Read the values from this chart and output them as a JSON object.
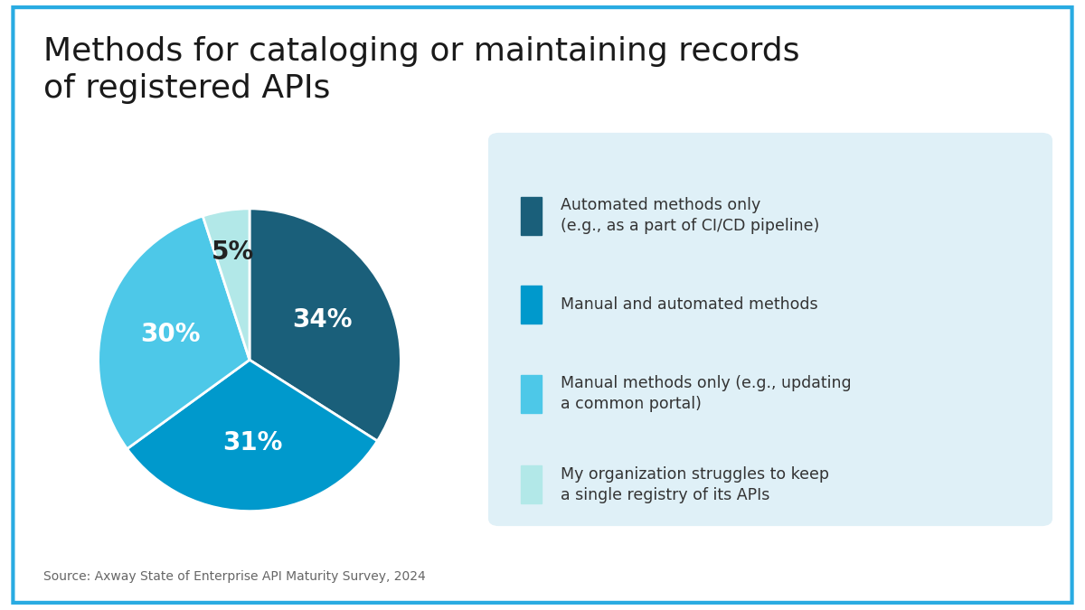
{
  "title": "Methods for cataloging or maintaining records\nof registered APIs",
  "title_fontsize": 26,
  "title_color": "#1a1a1a",
  "background_color": "#ffffff",
  "border_color": "#29abe2",
  "source_text": "Source: Axway State of Enterprise API Maturity Survey, 2024",
  "slices": [
    34,
    31,
    30,
    5
  ],
  "slice_colors": [
    "#1a5f7a",
    "#0099cc",
    "#4dc8e8",
    "#b2e8e8"
  ],
  "slice_labels": [
    "34%",
    "31%",
    "30%",
    "5%"
  ],
  "label_colors": [
    "#ffffff",
    "#ffffff",
    "#ffffff",
    "#222222"
  ],
  "legend_bg_color": "#dff0f7",
  "legend_labels": [
    "Automated methods only\n(e.g., as a part of CI/CD pipeline)",
    "Manual and automated methods",
    "Manual methods only (e.g., updating\na common portal)",
    "My organization struggles to keep\na single registry of its APIs"
  ],
  "legend_colors": [
    "#1a5f7a",
    "#0099cc",
    "#4dc8e8",
    "#b2e8e8"
  ],
  "legend_fontsize": 12.5,
  "start_angle": 90,
  "pct_fontsize": 20
}
